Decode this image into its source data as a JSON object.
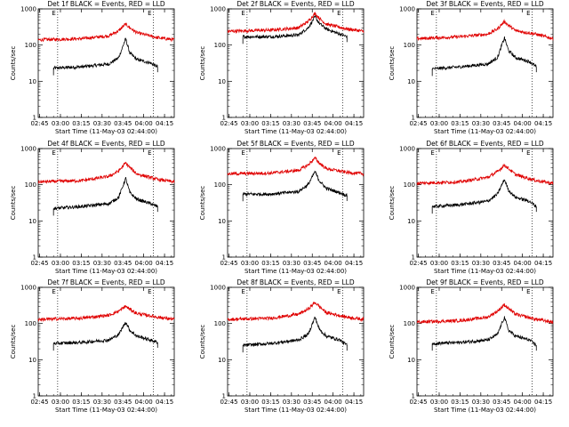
{
  "ylabel": "Counts/sec",
  "xlabel": "Start Time (11-May-03 02:44:00)",
  "x_ticks": [
    "02:45",
    "03:00",
    "03:15",
    "03:30",
    "03:45",
    "04:00",
    "04:15"
  ],
  "y_ticks": [
    "1",
    "10",
    "100",
    "1000"
  ],
  "marker_labels": [
    "E",
    "E"
  ],
  "colors": {
    "events": "#000000",
    "lld": "#e00000"
  },
  "chart_data": [
    {
      "type": "line",
      "title": "Det 1f BLACK = Events, RED = LLD",
      "x_range": [
        "02:44",
        "04:22"
      ],
      "ylim": [
        1,
        1000
      ],
      "y_scale": "log",
      "markers": [
        "02:58",
        "04:07"
      ],
      "series": [
        {
          "name": "Events",
          "x": [
            "02:55",
            "03:15",
            "03:35",
            "03:42",
            "03:47",
            "03:50",
            "03:55",
            "04:05",
            "04:10"
          ],
          "values": [
            23,
            25,
            30,
            45,
            150,
            60,
            40,
            32,
            25
          ]
        },
        {
          "name": "LLD",
          "x": [
            "02:44",
            "03:15",
            "03:35",
            "03:42",
            "03:47",
            "03:50",
            "03:55",
            "04:10",
            "04:22"
          ],
          "values": [
            140,
            150,
            180,
            250,
            380,
            300,
            220,
            160,
            140
          ]
        }
      ]
    },
    {
      "type": "line",
      "title": "Det 2f BLACK = Events, RED = LLD",
      "x_range": [
        "02:44",
        "04:22"
      ],
      "ylim": [
        1,
        1000
      ],
      "y_scale": "log",
      "markers": [
        "02:58",
        "04:07"
      ],
      "series": [
        {
          "name": "Events",
          "x": [
            "02:55",
            "03:15",
            "03:35",
            "03:42",
            "03:47",
            "03:50",
            "03:55",
            "04:05",
            "04:10"
          ],
          "values": [
            170,
            170,
            190,
            300,
            600,
            400,
            280,
            200,
            170
          ]
        },
        {
          "name": "LLD",
          "x": [
            "02:44",
            "03:15",
            "03:35",
            "03:42",
            "03:47",
            "03:50",
            "03:55",
            "04:10",
            "04:22"
          ],
          "values": [
            240,
            260,
            300,
            450,
            750,
            550,
            380,
            280,
            240
          ]
        }
      ]
    },
    {
      "type": "line",
      "title": "Det 3f BLACK = Events, RED = LLD",
      "x_range": [
        "02:44",
        "04:22"
      ],
      "ylim": [
        1,
        1000
      ],
      "y_scale": "log",
      "markers": [
        "02:58",
        "04:07"
      ],
      "series": [
        {
          "name": "Events",
          "x": [
            "02:55",
            "03:15",
            "03:35",
            "03:42",
            "03:47",
            "03:50",
            "03:55",
            "04:05",
            "04:10"
          ],
          "values": [
            22,
            25,
            30,
            45,
            160,
            70,
            45,
            35,
            25
          ]
        },
        {
          "name": "LLD",
          "x": [
            "02:44",
            "03:15",
            "03:35",
            "03:42",
            "03:47",
            "03:50",
            "03:55",
            "04:10",
            "04:22"
          ],
          "values": [
            150,
            170,
            200,
            280,
            450,
            350,
            250,
            200,
            150
          ]
        }
      ]
    },
    {
      "type": "line",
      "title": "Det 4f BLACK = Events, RED = LLD",
      "x_range": [
        "02:44",
        "04:22"
      ],
      "ylim": [
        1,
        1000
      ],
      "y_scale": "log",
      "markers": [
        "02:58",
        "04:07"
      ],
      "series": [
        {
          "name": "Events",
          "x": [
            "02:55",
            "03:15",
            "03:35",
            "03:42",
            "03:47",
            "03:50",
            "03:55",
            "04:05",
            "04:10"
          ],
          "values": [
            22,
            25,
            30,
            45,
            150,
            60,
            40,
            30,
            25
          ]
        },
        {
          "name": "LLD",
          "x": [
            "02:44",
            "03:15",
            "03:35",
            "03:42",
            "03:47",
            "03:50",
            "03:55",
            "04:10",
            "04:22"
          ],
          "values": [
            120,
            130,
            170,
            240,
            400,
            300,
            200,
            140,
            120
          ]
        }
      ]
    },
    {
      "type": "line",
      "title": "Det 5f BLACK = Events, RED = LLD",
      "x_range": [
        "02:44",
        "04:22"
      ],
      "ylim": [
        1,
        1000
      ],
      "y_scale": "log",
      "markers": [
        "02:58",
        "04:07"
      ],
      "series": [
        {
          "name": "Events",
          "x": [
            "02:55",
            "03:15",
            "03:35",
            "03:42",
            "03:47",
            "03:50",
            "03:55",
            "04:05",
            "04:10"
          ],
          "values": [
            55,
            55,
            65,
            100,
            230,
            130,
            80,
            60,
            50
          ]
        },
        {
          "name": "LLD",
          "x": [
            "02:44",
            "03:15",
            "03:35",
            "03:42",
            "03:47",
            "03:50",
            "03:55",
            "04:10",
            "04:22"
          ],
          "values": [
            200,
            210,
            250,
            350,
            550,
            400,
            280,
            220,
            200
          ]
        }
      ]
    },
    {
      "type": "line",
      "title": "Det 6f BLACK = Events, RED = LLD",
      "x_range": [
        "02:44",
        "04:22"
      ],
      "ylim": [
        1,
        1000
      ],
      "y_scale": "log",
      "markers": [
        "02:58",
        "04:07"
      ],
      "series": [
        {
          "name": "Events",
          "x": [
            "02:55",
            "03:15",
            "03:35",
            "03:42",
            "03:47",
            "03:50",
            "03:55",
            "04:05",
            "04:10"
          ],
          "values": [
            25,
            28,
            35,
            55,
            140,
            70,
            45,
            35,
            25
          ]
        },
        {
          "name": "LLD",
          "x": [
            "02:44",
            "03:15",
            "03:35",
            "03:42",
            "03:47",
            "03:50",
            "03:55",
            "04:10",
            "04:22"
          ],
          "values": [
            110,
            120,
            160,
            230,
            350,
            280,
            190,
            130,
            110
          ]
        }
      ]
    },
    {
      "type": "line",
      "title": "Det 7f BLACK = Events, RED = LLD",
      "x_range": [
        "02:44",
        "04:22"
      ],
      "ylim": [
        1,
        1000
      ],
      "y_scale": "log",
      "markers": [
        "02:58",
        "04:07"
      ],
      "series": [
        {
          "name": "Events",
          "x": [
            "02:55",
            "03:15",
            "03:35",
            "03:42",
            "03:47",
            "03:50",
            "03:55",
            "04:05",
            "04:10"
          ],
          "values": [
            28,
            30,
            35,
            50,
            110,
            65,
            45,
            35,
            30
          ]
        },
        {
          "name": "LLD",
          "x": [
            "02:44",
            "03:15",
            "03:35",
            "03:42",
            "03:47",
            "03:50",
            "03:55",
            "04:10",
            "04:22"
          ],
          "values": [
            130,
            140,
            170,
            220,
            300,
            250,
            190,
            150,
            130
          ]
        }
      ]
    },
    {
      "type": "line",
      "title": "Det 8f BLACK = Events, RED = LLD",
      "x_range": [
        "02:44",
        "04:22"
      ],
      "ylim": [
        1,
        1000
      ],
      "y_scale": "log",
      "markers": [
        "02:58",
        "04:07"
      ],
      "series": [
        {
          "name": "Events",
          "x": [
            "02:55",
            "03:15",
            "03:35",
            "03:42",
            "03:47",
            "03:50",
            "03:55",
            "04:05",
            "04:10"
          ],
          "values": [
            25,
            28,
            35,
            50,
            150,
            70,
            45,
            35,
            25
          ]
        },
        {
          "name": "LLD",
          "x": [
            "02:44",
            "03:15",
            "03:35",
            "03:42",
            "03:47",
            "03:50",
            "03:55",
            "04:10",
            "04:22"
          ],
          "values": [
            130,
            140,
            180,
            250,
            380,
            300,
            200,
            150,
            130
          ]
        }
      ]
    },
    {
      "type": "line",
      "title": "Det 9f BLACK = Events, RED = LLD",
      "x_range": [
        "02:44",
        "04:22"
      ],
      "ylim": [
        1,
        1000
      ],
      "y_scale": "log",
      "markers": [
        "02:58",
        "04:07"
      ],
      "series": [
        {
          "name": "Events",
          "x": [
            "02:55",
            "03:15",
            "03:35",
            "03:42",
            "03:47",
            "03:50",
            "03:55",
            "04:05",
            "04:10"
          ],
          "values": [
            28,
            30,
            35,
            50,
            150,
            65,
            45,
            35,
            25
          ]
        },
        {
          "name": "LLD",
          "x": [
            "02:44",
            "03:15",
            "03:35",
            "03:42",
            "03:47",
            "03:50",
            "03:55",
            "04:10",
            "04:22"
          ],
          "values": [
            110,
            120,
            150,
            220,
            330,
            260,
            180,
            130,
            110
          ]
        }
      ]
    }
  ]
}
